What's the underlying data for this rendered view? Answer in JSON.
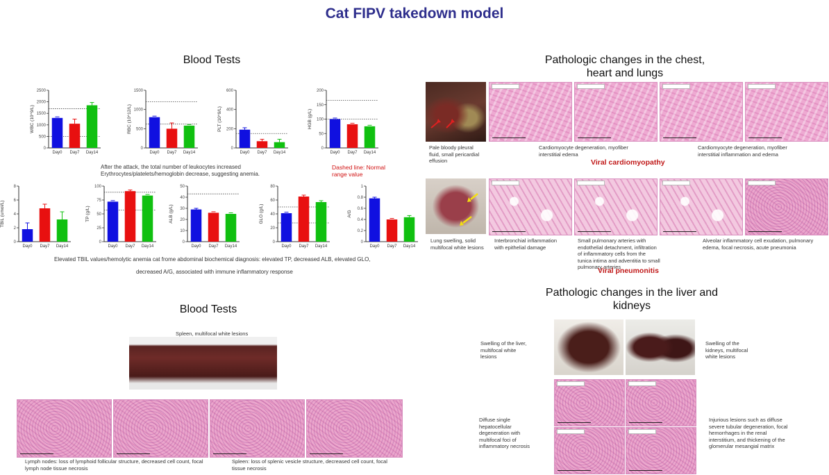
{
  "title": "Cat FIPV takedown model",
  "left_top": {
    "heading": "Blood Tests",
    "note_leukocytes": "After the attack, the total number of leukocytes increased",
    "note_anemia": "Erythrocytes/platelets/hemoglobin decrease, suggesting anemia.",
    "dashed_line_note": "Dashed line: Normal range value",
    "summary_line1": "Elevated TBIL values/hemolytic anemia cat frome abdominal biochemical diagnosis: elevated TP, decreased ALB, elevated GLO,",
    "summary_line2": "decreased A/G, associated with immune inflammatory response"
  },
  "chart_data": [
    {
      "type": "bar",
      "ylabel": "WBC (10^9/L)",
      "categories": [
        "Day0",
        "Day7",
        "Day14"
      ],
      "values": [
        1300,
        1050,
        1850
      ],
      "errors": [
        0,
        200,
        120
      ],
      "ylim": [
        0,
        2500
      ],
      "yticks": [
        0,
        500,
        1000,
        1500,
        2000,
        2500
      ],
      "ref_lines": [
        1700,
        500
      ],
      "colors": [
        "#1010e0",
        "#e81010",
        "#10c010"
      ]
    },
    {
      "type": "bar",
      "ylabel": "RBC (10^12/L)",
      "categories": [
        "Day0",
        "Day7",
        "Day14"
      ],
      "values": [
        800,
        500,
        580
      ],
      "errors": [
        0,
        150,
        0
      ],
      "ylim": [
        0,
        1500
      ],
      "yticks": [
        0,
        500,
        1000,
        1500
      ],
      "ref_lines": [
        1200,
        620
      ],
      "colors": [
        "#1010e0",
        "#e81010",
        "#10c010"
      ]
    },
    {
      "type": "bar",
      "ylabel": "PLT (10^9/L)",
      "categories": [
        "Day0",
        "Day7",
        "Day14"
      ],
      "values": [
        190,
        70,
        60
      ],
      "errors": [
        20,
        20,
        30
      ],
      "ylim": [
        0,
        600
      ],
      "yticks": [
        0,
        200,
        400,
        600
      ],
      "ref_lines": [
        150
      ],
      "colors": [
        "#1010e0",
        "#e81010",
        "#10c010"
      ]
    },
    {
      "type": "bar",
      "ylabel": "HGB (g/L)",
      "categories": [
        "Day0",
        "Day7",
        "Day14"
      ],
      "values": [
        100,
        82,
        75
      ],
      "errors": [
        0,
        0,
        0
      ],
      "ylim": [
        0,
        200
      ],
      "yticks": [
        0,
        50,
        100,
        150,
        200
      ],
      "ref_lines": [
        165,
        100
      ],
      "colors": [
        "#1010e0",
        "#e81010",
        "#10c010"
      ]
    },
    {
      "type": "bar",
      "ylabel": "TBIL (umol/L)",
      "categories": [
        "Day0",
        "Day7",
        "Day14"
      ],
      "values": [
        1.8,
        4.8,
        3.2
      ],
      "errors": [
        0.9,
        0.6,
        1.1
      ],
      "ylim": [
        0,
        8
      ],
      "yticks": [
        0,
        2,
        4,
        6,
        8
      ],
      "ref_lines": [],
      "colors": [
        "#1010e0",
        "#e81010",
        "#10c010"
      ]
    },
    {
      "type": "bar",
      "ylabel": "TP (g/L)",
      "categories": [
        "Day0",
        "Day7",
        "Day14"
      ],
      "values": [
        72,
        91,
        83
      ],
      "errors": [
        0,
        2,
        0
      ],
      "ylim": [
        0,
        100
      ],
      "yticks": [
        0,
        25,
        50,
        75,
        100
      ],
      "ref_lines": [
        89,
        57
      ],
      "colors": [
        "#1010e0",
        "#e81010",
        "#10c010"
      ]
    },
    {
      "type": "bar",
      "ylabel": "ALB (g/L)",
      "categories": [
        "Day0",
        "Day7",
        "Day14"
      ],
      "values": [
        29,
        26,
        25
      ],
      "errors": [
        1,
        0,
        0
      ],
      "ylim": [
        0,
        50
      ],
      "yticks": [
        0,
        10,
        20,
        30,
        40,
        50
      ],
      "ref_lines": [
        43
      ],
      "colors": [
        "#1010e0",
        "#e81010",
        "#10c010"
      ]
    },
    {
      "type": "bar",
      "ylabel": "GLO (g/L)",
      "categories": [
        "Day0",
        "Day7",
        "Day14"
      ],
      "values": [
        41,
        65,
        57
      ],
      "errors": [
        0,
        2,
        2
      ],
      "ylim": [
        0,
        80
      ],
      "yticks": [
        0,
        20,
        40,
        60,
        80
      ],
      "ref_lines": [
        50,
        27
      ],
      "colors": [
        "#1010e0",
        "#e81010",
        "#10c010"
      ]
    },
    {
      "type": "bar",
      "ylabel": "A/G",
      "categories": [
        "Day0",
        "Day7",
        "Day14"
      ],
      "values": [
        0.78,
        0.4,
        0.44
      ],
      "errors": [
        0.02,
        0,
        0.03
      ],
      "ylim": [
        0,
        1.0
      ],
      "yticks": [
        0,
        0.2,
        0.4,
        0.6,
        0.8,
        1.0
      ],
      "ref_lines": [],
      "colors": [
        "#1010e0",
        "#e81010",
        "#10c010"
      ]
    }
  ],
  "chest": {
    "heading_line1": "Pathologic changes in the chest,",
    "heading_line2": "heart and lungs",
    "cap_gross_chest": "Pale bloody pleural fluid, small pericardial effusion",
    "cap_heart_a": "Cardiomyocyte degeneration, myofiber interstitial edema",
    "cap_heart_b": "Cardiomyocyte degeneration, myofiber interstitial inflammation and edema",
    "label_cardio": "Viral cardiomyopathy",
    "cap_gross_lung": "Lung swelling, solid multifocal white lesions",
    "cap_lung_a": "Interbronchial inflammation with epithelial damage",
    "cap_lung_b": "Small pulmonary arteries with endothelial detachment, infiltration of inflammatory cells from the tunica intima and adventitia to small pulmonary arteries",
    "cap_lung_c": "Alveolar inflammatory cell exudation, pulmonary edema, focal necrosis, acute pneumonia",
    "label_pneumo": "Viral pneumonitis"
  },
  "left_bottom": {
    "heading": "Blood Tests",
    "cap_spleen_gross": "Spleen, multifocal white lesions",
    "cap_lymph": "Lymph nodes: loss of lymphoid follicular structure, decreased cell count, focal lymph node tissue necrosis",
    "cap_spleen_histo": "Spleen: loss of splenic vesicle structure, decreased cell count, focal tissue necrosis"
  },
  "liver": {
    "heading_line1": "Pathologic changes in the liver and",
    "heading_line2": "kidneys",
    "cap_liver_gross": "Swelling of the liver, multifocal white lesions",
    "cap_kidney_gross": "Swelling of the kidneys, multifocal white lesions",
    "cap_liver_histo": "Diffuse single hepatocellular degeneration with multifocal foci of inflammatory necrosis",
    "cap_kidney_histo": "Injurious lesions such as diffuse severe tubular degeneration, focal hemorrhages in the renal interstitium, and thickening of the glomerular mesangial matrix"
  }
}
